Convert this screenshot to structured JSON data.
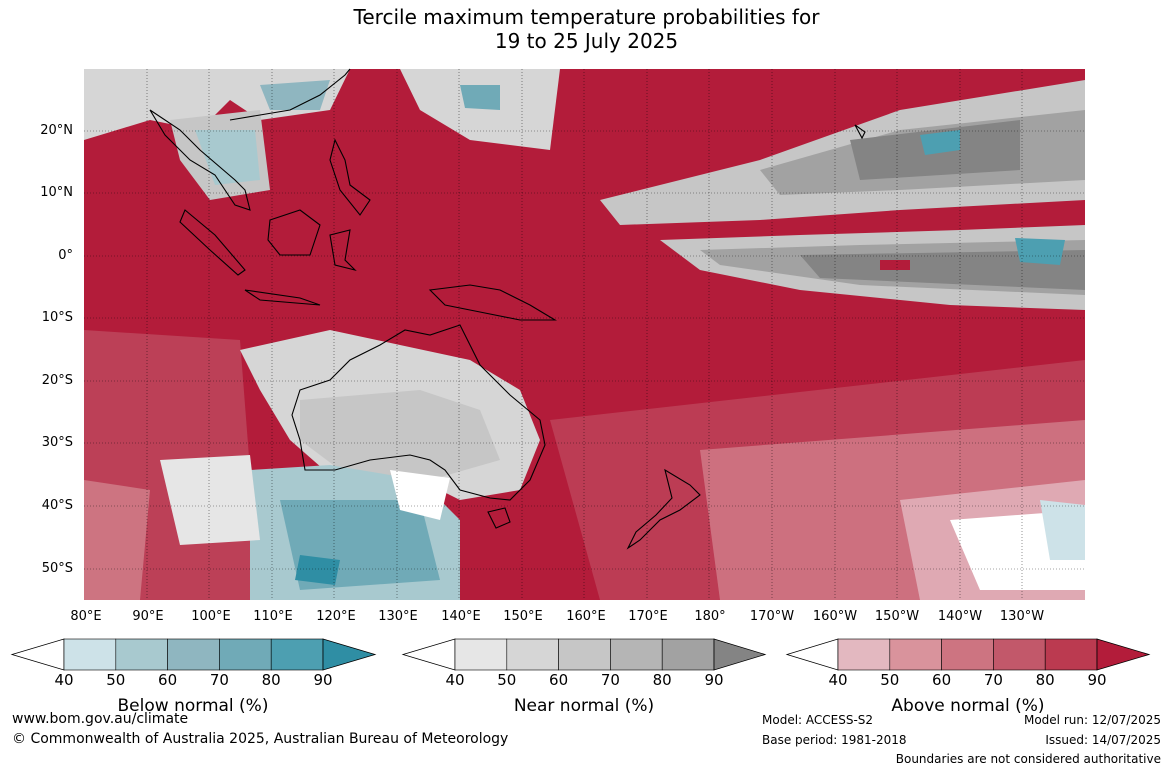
{
  "title_line1": "Tercile maximum temperature probabilities for",
  "title_line2": "19 to 25 July 2025",
  "lat_labels": [
    "20°N",
    "10°N",
    "0°",
    "10°S",
    "20°S",
    "30°S",
    "40°S",
    "50°S"
  ],
  "lon_labels": [
    "80°E",
    "90°E",
    "100°E",
    "110°E",
    "120°E",
    "130°E",
    "140°E",
    "150°E",
    "160°E",
    "170°E",
    "180°",
    "170°W",
    "160°W",
    "150°W",
    "140°W",
    "130°W"
  ],
  "colorbars": [
    {
      "title": "Below normal (%)",
      "ticks": [
        "40",
        "50",
        "60",
        "70",
        "80",
        "90"
      ],
      "colors": [
        "#cde2e8",
        "#a8c9cf",
        "#8fb6c0",
        "#70aab7",
        "#4d9fb1",
        "#2f8ea4"
      ]
    },
    {
      "title": "Near normal (%)",
      "ticks": [
        "40",
        "50",
        "60",
        "70",
        "80",
        "90"
      ],
      "colors": [
        "#e6e6e6",
        "#d6d6d6",
        "#c6c6c6",
        "#b5b5b5",
        "#a2a2a2",
        "#848484"
      ]
    },
    {
      "title": "Above normal (%)",
      "ticks": [
        "40",
        "50",
        "60",
        "70",
        "80",
        "90"
      ],
      "colors": [
        "#e3b8c0",
        "#d9939c",
        "#cd7481",
        "#c2586a",
        "#bb3a50",
        "#b31c3a"
      ]
    }
  ],
  "footer": {
    "website": "www.bom.gov.au/climate",
    "copyright": "© Commonwealth of Australia 2025, Australian Bureau of Meteorology",
    "model": "Model: ACCESS-S2",
    "base_period": "Base period: 1981-2018",
    "model_run": "Model run: 12/07/2025",
    "issued": "Issued: 14/07/2025",
    "disclaimer": "Boundaries are not considered authoritative"
  },
  "colors": {
    "above_strong": "#b31c3a",
    "near_grey": "#b5b5b5",
    "below_blue": "#4d9fb1",
    "coastline": "#000000"
  }
}
